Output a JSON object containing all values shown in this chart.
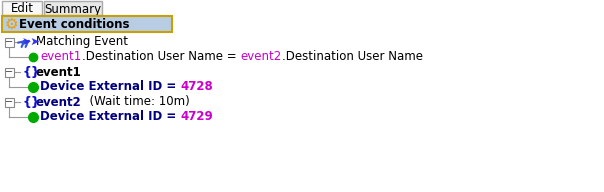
{
  "bg_color": "#ffffff",
  "tab_edit": "Edit",
  "tab_summary": "Summary",
  "header_label": "Event conditions",
  "header_bg": "#b8cce4",
  "header_border": "#c8a000",
  "row1_label": "Matching Event",
  "row2_text_parts": [
    {
      "text": "event1",
      "color": "#cc00cc"
    },
    {
      "text": ".Destination User Name = ",
      "color": "#000000"
    },
    {
      "text": "event2",
      "color": "#cc00cc"
    },
    {
      "text": ".Destination User Name",
      "color": "#000000"
    }
  ],
  "row3_label": "event1",
  "row4_text_parts": [
    {
      "text": "Device External ID = ",
      "color": "#000080"
    },
    {
      "text": "4728",
      "color": "#cc00cc"
    }
  ],
  "row5_label_parts": [
    {
      "text": "event2",
      "color": "#000080"
    },
    {
      "text": "  (Wait time: 10m)",
      "color": "#000000"
    }
  ],
  "row6_text_parts": [
    {
      "text": "Device External ID = ",
      "color": "#000080"
    },
    {
      "text": "4729",
      "color": "#cc00cc"
    }
  ],
  "font_size": 8.5,
  "tree_color": "#999999",
  "green_dot": "#00aa00",
  "blue_icon": "#1010cc",
  "yellow_gear": "#e8a000",
  "minus_color": "#404040",
  "tab_bg_active": "#f0f0f0",
  "tab_bg_inactive": "#e0e0e0"
}
